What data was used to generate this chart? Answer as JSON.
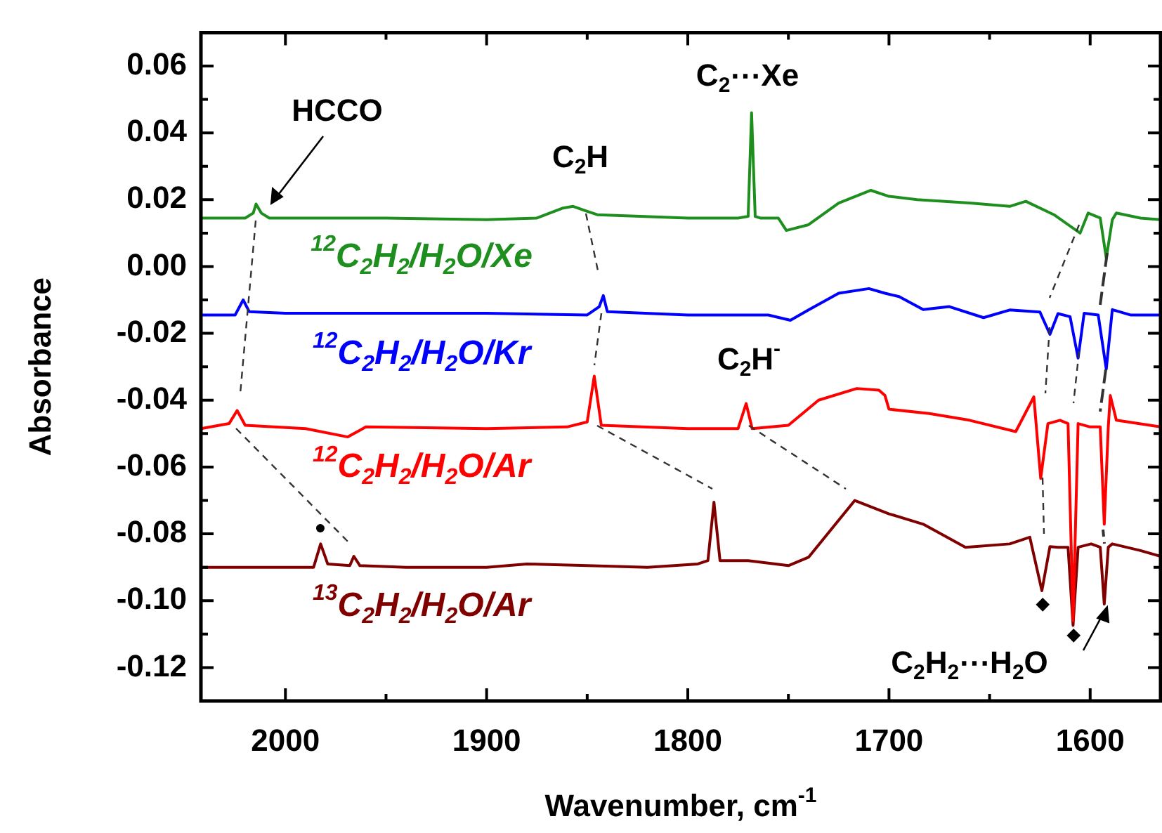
{
  "chart_data": {
    "type": "line",
    "xlabel": "Wavenumber, cm$^{-1}$",
    "ylabel": "Absorbance",
    "xlim": [
      2042,
      1565
    ],
    "ylim": [
      -0.13,
      0.07
    ],
    "xticks": [
      2000,
      {
        "value": 1950,
        "label": null
      },
      1900,
      {
        "value": 1850,
        "label": null
      },
      1800,
      {
        "value": 1750,
        "label": null
      },
      1700,
      {
        "value": 1650,
        "label": null
      },
      1600
    ],
    "yticks": [
      {
        "value": -0.13,
        "label": null
      },
      {
        "value": -0.12,
        "label": "-0.12"
      },
      {
        "value": -0.11,
        "label": null
      },
      {
        "value": -0.1,
        "label": "-0.10"
      },
      {
        "value": -0.09,
        "label": null
      },
      {
        "value": -0.08,
        "label": "-0.08"
      },
      {
        "value": -0.07,
        "label": null
      },
      {
        "value": -0.06,
        "label": "-0.06"
      },
      {
        "value": -0.05,
        "label": null
      },
      {
        "value": -0.04,
        "label": "-0.04"
      },
      {
        "value": -0.03,
        "label": null
      },
      {
        "value": -0.02,
        "label": "-0.02"
      },
      {
        "value": -0.01,
        "label": null
      },
      {
        "value": 0,
        "label": "0.00"
      },
      {
        "value": 0.01,
        "label": null
      },
      {
        "value": 0.02,
        "label": "0.02"
      },
      {
        "value": 0.03,
        "label": null
      },
      {
        "value": 0.04,
        "label": "0.04"
      },
      {
        "value": 0.05,
        "label": null
      },
      {
        "value": 0.06,
        "label": "0.06"
      }
    ],
    "grid": false,
    "legend": false,
    "series": [
      {
        "name": "$^{12}$C$_{2}$H$_{2}$/H$_{2}$O/Xe",
        "color": "#1e8f1e",
        "x": [
          2042,
          2020,
          2016,
          2014.6,
          2012,
          2008,
          1980,
          1950,
          1900,
          1875,
          1862,
          1857,
          1850,
          1845,
          1800,
          1775,
          1770,
          1768.3,
          1766.5,
          1764,
          1755,
          1751,
          1740,
          1725,
          1709,
          1700,
          1686,
          1660,
          1640,
          1632,
          1618,
          1605,
          1601,
          1595,
          1592,
          1589,
          1587,
          1575,
          1565
        ],
        "values": [
          0.0145,
          0.0145,
          0.016,
          0.0187,
          0.016,
          0.0145,
          0.0145,
          0.0145,
          0.014,
          0.0145,
          0.0175,
          0.018,
          0.0165,
          0.0155,
          0.0145,
          0.0145,
          0.015,
          0.046,
          0.015,
          0.0145,
          0.0145,
          0.0108,
          0.0125,
          0.019,
          0.0228,
          0.021,
          0.02,
          0.019,
          0.018,
          0.0195,
          0.0155,
          0.01,
          0.016,
          0.0145,
          0.0025,
          0.014,
          0.016,
          0.0145,
          0.014
        ]
      },
      {
        "name": "$^{12}$C$_{2}$H$_{2}$/H$_{2}$O/Kr",
        "color": "#0000ff",
        "x": [
          2042,
          2025,
          2021,
          2018,
          2000,
          1950,
          1900,
          1850,
          1844,
          1842,
          1840,
          1800,
          1760,
          1749,
          1740,
          1725,
          1710,
          1702,
          1695,
          1683,
          1670,
          1653,
          1640,
          1625,
          1620,
          1616,
          1610,
          1606,
          1603,
          1596,
          1592,
          1589,
          1580,
          1565
        ],
        "values": [
          -0.0145,
          -0.0145,
          -0.01,
          -0.0135,
          -0.014,
          -0.014,
          -0.014,
          -0.0145,
          -0.012,
          -0.0087,
          -0.0135,
          -0.0145,
          -0.0145,
          -0.0161,
          -0.013,
          -0.008,
          -0.0066,
          -0.008,
          -0.009,
          -0.0129,
          -0.012,
          -0.0153,
          -0.013,
          -0.0136,
          -0.0203,
          -0.0141,
          -0.015,
          -0.0274,
          -0.014,
          -0.0145,
          -0.0307,
          -0.0129,
          -0.0145,
          -0.0145
        ]
      },
      {
        "name": "$^{12}$C$_{2}$H$_{2}$/H$_{2}$O/Ar",
        "color": "#ff0000",
        "x": [
          2042,
          2028,
          2024,
          2020,
          1990,
          1969,
          1960,
          1900,
          1860,
          1850,
          1846.5,
          1843,
          1800,
          1775,
          1771,
          1768,
          1750,
          1735,
          1716,
          1705,
          1702,
          1700,
          1680,
          1660,
          1637,
          1628,
          1624.6,
          1621,
          1615,
          1611,
          1608.5,
          1606,
          1600,
          1595,
          1593,
          1591,
          1590,
          1587,
          1565
        ],
        "values": [
          -0.0485,
          -0.047,
          -0.0431,
          -0.0475,
          -0.0485,
          -0.051,
          -0.048,
          -0.0485,
          -0.048,
          -0.0465,
          -0.0328,
          -0.0475,
          -0.0485,
          -0.0485,
          -0.041,
          -0.0485,
          -0.0475,
          -0.04,
          -0.0365,
          -0.037,
          -0.0386,
          -0.0427,
          -0.044,
          -0.046,
          -0.0494,
          -0.039,
          -0.0634,
          -0.047,
          -0.046,
          -0.047,
          -0.106,
          -0.047,
          -0.048,
          -0.048,
          -0.0771,
          -0.048,
          -0.0386,
          -0.046,
          -0.048
        ]
      },
      {
        "name": "$^{13}$C$_{2}$H$_{2}$/H$_{2}$O/Ar",
        "color": "#800000",
        "x": [
          2042,
          2000,
          1986,
          1982.5,
          1979,
          1968,
          1966,
          1963,
          1940,
          1900,
          1880,
          1850,
          1820,
          1795,
          1790,
          1787,
          1784,
          1770,
          1750,
          1740,
          1717,
          1700,
          1683,
          1662,
          1640,
          1630,
          1624,
          1620,
          1616,
          1611,
          1608.5,
          1606,
          1599.5,
          1595,
          1593,
          1591,
          1589,
          1575,
          1565
        ],
        "values": [
          -0.09,
          -0.09,
          -0.09,
          -0.083,
          -0.089,
          -0.0895,
          -0.0867,
          -0.0895,
          -0.09,
          -0.09,
          -0.089,
          -0.0895,
          -0.09,
          -0.089,
          -0.088,
          -0.0705,
          -0.088,
          -0.088,
          -0.0895,
          -0.087,
          -0.07,
          -0.074,
          -0.0771,
          -0.084,
          -0.083,
          -0.081,
          -0.097,
          -0.0838,
          -0.084,
          -0.084,
          -0.1074,
          -0.084,
          -0.083,
          -0.084,
          -0.101,
          -0.084,
          -0.083,
          -0.085,
          -0.0867
        ]
      }
    ],
    "annotations": [
      "HCCO",
      "C$_{2}$⋯Xe",
      "C$_{2}$H",
      "C$_{2}$H$^{-}$",
      "C$_{2}$H$_{2}$⋯H$_{2}$O",
      "●",
      "◆",
      "◆"
    ]
  }
}
